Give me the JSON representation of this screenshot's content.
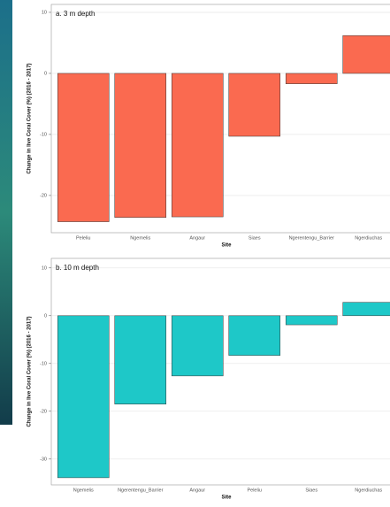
{
  "chart_data": [
    {
      "type": "bar",
      "title": "a. 3 m depth",
      "x_label": "Site",
      "y_label": "Change in live Coral Cover (%) (2016 - 2017)",
      "categories": [
        "Peleliu",
        "Ngemelis",
        "Angaur",
        "Siaes",
        "Ngerentengu_Barrier",
        "Ngerdiuchas"
      ],
      "values": [
        -24.3,
        -23.6,
        -23.5,
        -10.3,
        -1.7,
        6.2
      ],
      "color": "#fa6a50",
      "ylim": [
        -26.1,
        11.3
      ],
      "yticks": [
        10,
        0,
        -10,
        -20
      ],
      "grid": true
    },
    {
      "type": "bar",
      "title": "b. 10 m depth",
      "x_label": "Site",
      "y_label": "Change in live Coral Cover (%) (2016 - 2017)",
      "categories": [
        "Ngemelis",
        "Ngerentengu_Barrier",
        "Angaur",
        "Peleliu",
        "Siaes",
        "Ngerdiuchas"
      ],
      "values": [
        -33.9,
        -18.5,
        -12.6,
        -8.3,
        -1.9,
        2.8
      ],
      "color": "#1ec8c8",
      "ylim": [
        -35.4,
        12
      ],
      "yticks": [
        10,
        0,
        -10,
        -20,
        -30
      ],
      "grid": true
    }
  ]
}
